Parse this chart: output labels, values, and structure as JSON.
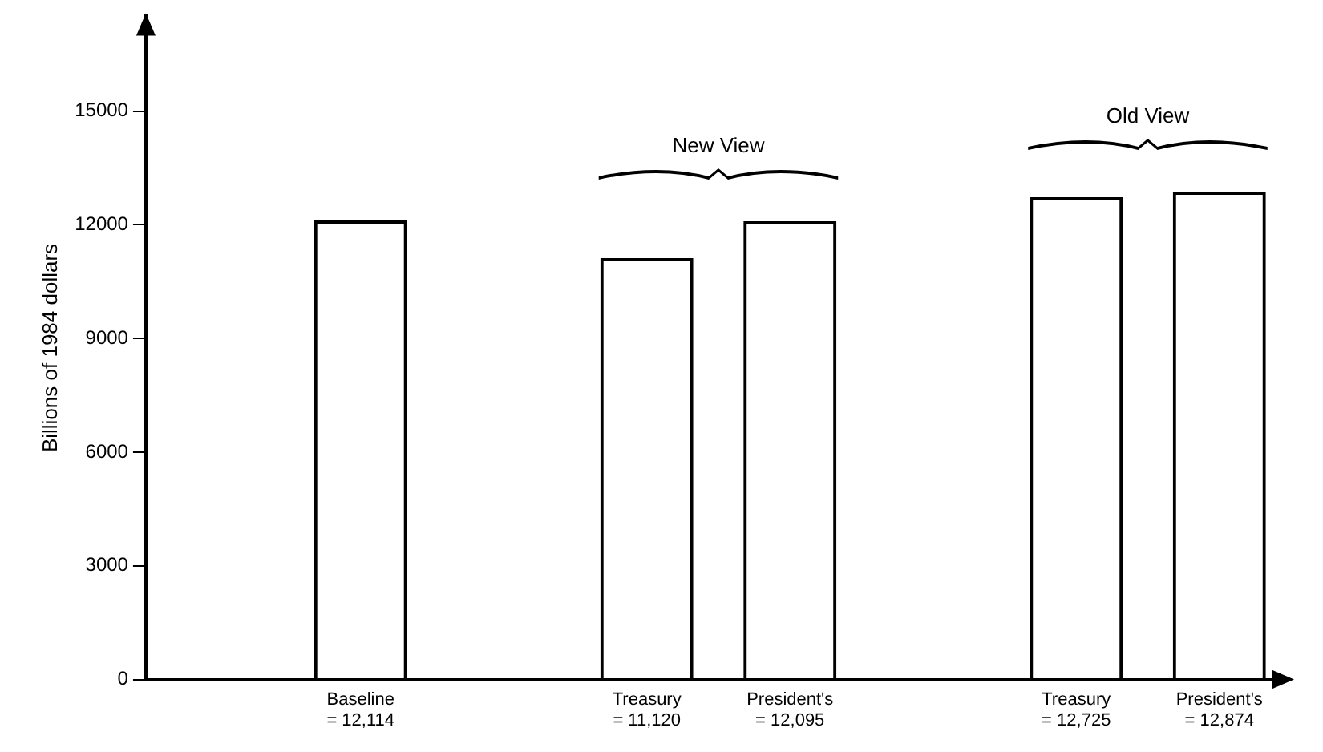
{
  "chart_data": {
    "type": "bar",
    "ylabel": "Billions of 1984 dollars",
    "categories": [
      null,
      "Baseline",
      null,
      "Treasury",
      "President's",
      null,
      "Treasury",
      "President's"
    ],
    "values": [
      null,
      12114,
      null,
      11120,
      12095,
      null,
      12725,
      12874
    ],
    "value_labels": [
      null,
      "= 12,114",
      null,
      "= 11,120",
      "= 12,095",
      null,
      "= 12,725",
      "= 12,874"
    ],
    "color": "#000000",
    "ylim": [
      0,
      17500
    ],
    "yticks": [
      0,
      3000,
      6000,
      9000,
      12000,
      15000
    ],
    "annotations": [
      "New View",
      "Old View"
    ],
    "grid": false,
    "legend": false
  }
}
